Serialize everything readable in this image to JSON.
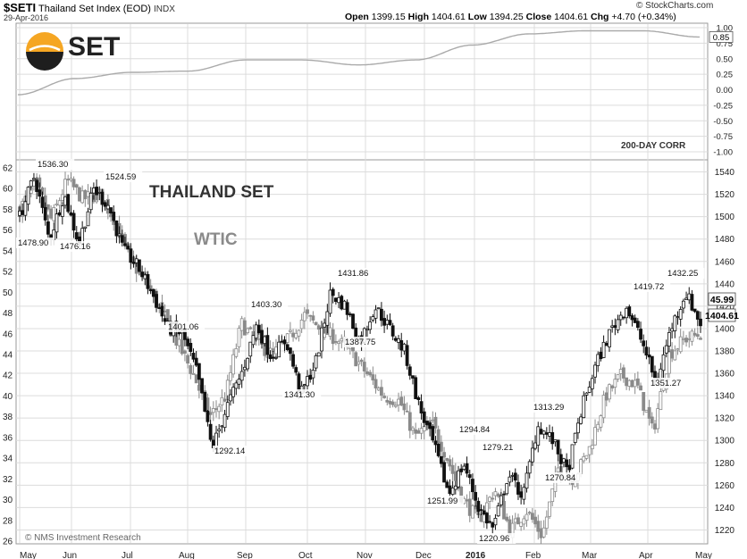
{
  "header": {
    "symbol": "$SETI",
    "name": "Thailand Set Index (EOD)",
    "exchange": "INDX",
    "date": "29-Apr-2016",
    "open_label": "Open",
    "open": "1399.15",
    "high_label": "High",
    "high": "1404.61",
    "low_label": "Low",
    "low": "1394.25",
    "close_label": "Close",
    "close": "1404.61",
    "chg_label": "Chg",
    "chg": "+4.70 (+0.34%)",
    "source": "© StockCharts.com"
  },
  "logo": {
    "text": "SET",
    "colors": {
      "orange": "#f5a623",
      "dark": "#1e1e1e"
    }
  },
  "colors": {
    "set": "#111111",
    "wtic": "#8a8a8a",
    "corr": "#aaaaaa",
    "grid": "#dcdcdc"
  },
  "chart_data": [
    {
      "type": "line",
      "title": "200-DAY CORR",
      "ylim": [
        -1.0,
        1.0
      ],
      "yticks": [
        "1.00",
        "0.75",
        "0.50",
        "0.25",
        "0.00",
        "-0.25",
        "-0.50",
        "-0.75",
        "-1.00"
      ],
      "current_label": "0.85",
      "x": [
        "May",
        "Jun",
        "Jul",
        "Aug",
        "Sep",
        "Oct",
        "Nov",
        "Dec",
        "2016",
        "Feb",
        "Mar",
        "Apr",
        "May"
      ],
      "values": [
        -0.08,
        0.18,
        0.28,
        0.3,
        0.48,
        0.48,
        0.4,
        0.48,
        0.72,
        0.9,
        0.95,
        0.95,
        0.85
      ]
    },
    {
      "type": "candlestick",
      "x": [
        "May",
        "Jun",
        "Jul",
        "Aug",
        "Sep",
        "Oct",
        "Nov",
        "Dec",
        "2016",
        "Feb",
        "Mar",
        "Apr",
        "May"
      ],
      "ylim_left": [
        26,
        62
      ],
      "yticks_left": [
        "62",
        "60",
        "58",
        "56",
        "54",
        "52",
        "50",
        "48",
        "46",
        "44",
        "42",
        "40",
        "38",
        "36",
        "34",
        "32",
        "30",
        "28",
        "26"
      ],
      "ylim_right": [
        1210,
        1550
      ],
      "yticks_right": [
        "1540",
        "1520",
        "1500",
        "1480",
        "1460",
        "1440",
        "1420",
        "1400",
        "1380",
        "1360",
        "1340",
        "1320",
        "1300",
        "1280",
        "1260",
        "1240",
        "1220"
      ],
      "series": [
        {
          "name": "THAILAND SET",
          "axis": "right",
          "last_label": "1404.61",
          "path": [
            1500,
            1536.3,
            1478.9,
            1520,
            1476.16,
            1524.59,
            1510,
            1470,
            1455,
            1430,
            1401.06,
            1395,
            1360,
            1292.14,
            1330,
            1360,
            1403.3,
            1375,
            1390,
            1341.3,
            1370,
            1431.86,
            1420,
            1387.75,
            1420,
            1400,
            1380,
            1330,
            1294.84,
            1251.99,
            1279.21,
            1240,
            1220.96,
            1270,
            1250,
            1313.29,
            1300,
            1270.84,
            1330,
            1370,
            1400,
            1419.72,
            1390,
            1351.27,
            1400,
            1432.25,
            1404.61
          ]
        },
        {
          "name": "WTIC",
          "axis": "left",
          "last_label": "45.99",
          "path": [
            58,
            60.5,
            57,
            60.8,
            59,
            59.5,
            57,
            53,
            51,
            48,
            45,
            42,
            38,
            40,
            47,
            45,
            44,
            45.5,
            47.8,
            46.5,
            45.5,
            44,
            42,
            40,
            39.5,
            36,
            37.5,
            34,
            30,
            28,
            31,
            27,
            29,
            26.5,
            33,
            32,
            35,
            40,
            42,
            41,
            36.5,
            44,
            45.5,
            45.99
          ]
        }
      ],
      "annotations": [
        "1536.30",
        "1478.90",
        "1476.16",
        "1524.59",
        "1401.06",
        "1292.14",
        "1403.30",
        "1341.30",
        "1431.86",
        "1387.75",
        "1294.84",
        "1251.99",
        "1279.21",
        "1220.96",
        "1313.29",
        "1270.84",
        "1419.72",
        "1351.27",
        "1432.25"
      ],
      "labels": {
        "set": "THAILAND SET",
        "wtic": "WTIC"
      },
      "watermark": "© NMS Investment Research"
    }
  ]
}
